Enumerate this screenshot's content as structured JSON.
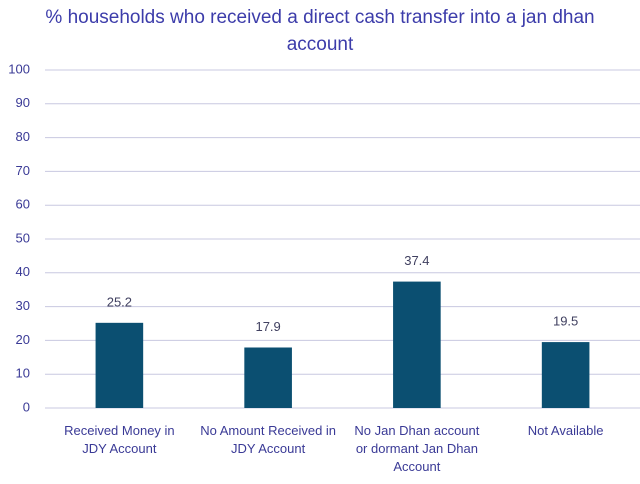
{
  "chart_data": {
    "type": "bar",
    "title": "% households who received a direct cash transfer into a jan dhan account",
    "categories": [
      "Received Money in JDY Account",
      "No Amount Received in JDY Account",
      "No Jan Dhan account or dormant Jan Dhan Account",
      "Not Available"
    ],
    "values": [
      25.2,
      17.9,
      37.4,
      19.5
    ],
    "color": "#0b4f71",
    "ylim": [
      0,
      100
    ],
    "yticks": [
      0,
      10,
      20,
      30,
      40,
      50,
      60,
      70,
      80,
      90,
      100
    ],
    "grid": true
  }
}
